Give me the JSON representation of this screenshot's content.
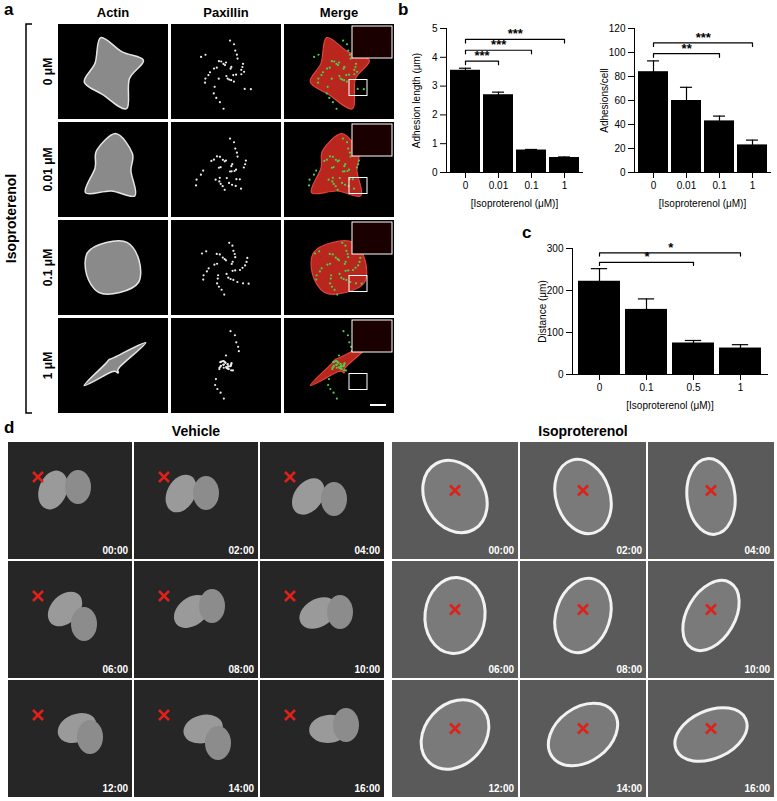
{
  "panel_labels": [
    "a",
    "b",
    "c",
    "d"
  ],
  "panel_a": {
    "group_label": "Isoproterenol",
    "columns": [
      "Actin",
      "Paxillin",
      "Merge"
    ],
    "rows": [
      "0 μM",
      "0.01 μM",
      "0.1 μM",
      "1 μM"
    ]
  },
  "chart_data": [
    {
      "type": "bar",
      "categories": [
        "0",
        "0.01",
        "0.1",
        "1"
      ],
      "values": [
        3.55,
        2.7,
        0.78,
        0.52
      ],
      "errors": [
        0.07,
        0.09,
        0.02,
        0.02
      ],
      "color": "#000000",
      "x_label": "[Isoproterenol (μM)]",
      "y_label": "Adhesion length (μm)",
      "ylim": [
        0,
        5
      ],
      "yticks": [
        0,
        1,
        2,
        3,
        4,
        5
      ],
      "annotations": [
        {
          "from": "0",
          "to": "0.01",
          "label": "***"
        },
        {
          "from": "0",
          "to": "0.1",
          "label": "***"
        },
        {
          "from": "0",
          "to": "1",
          "label": "***"
        }
      ]
    },
    {
      "type": "bar",
      "categories": [
        "0",
        "0.01",
        "0.1",
        "1"
      ],
      "values": [
        84,
        60,
        43,
        23
      ],
      "errors": [
        9,
        11,
        4,
        4
      ],
      "color": "#000000",
      "x_label": "[Isoproterenol (μM)]",
      "y_label": "Adhesions/cell",
      "ylim": [
        0,
        120
      ],
      "yticks": [
        0,
        20,
        40,
        60,
        80,
        100,
        120
      ],
      "annotations": [
        {
          "from": "0",
          "to": "0.1",
          "label": "**"
        },
        {
          "from": "0",
          "to": "1",
          "label": "***"
        }
      ]
    },
    {
      "type": "bar",
      "categories": [
        "0",
        "0.1",
        "0.5",
        "1"
      ],
      "values": [
        222,
        155,
        75,
        63
      ],
      "errors": [
        30,
        25,
        6,
        8
      ],
      "color": "#000000",
      "x_label": "[Isoproterenol (μM)]",
      "y_label": "Distance (μm)",
      "ylim": [
        0,
        300
      ],
      "yticks": [
        0,
        100,
        200,
        300
      ],
      "annotations": [
        {
          "from": "0",
          "to": "0.5",
          "label": "*"
        },
        {
          "from": "0",
          "to": "1",
          "label": "*"
        }
      ]
    }
  ],
  "panel_d": {
    "columns": [
      "Vehicle",
      "Isoproterenol"
    ],
    "timestamps": [
      "00:00",
      "02:00",
      "04:00",
      "06:00",
      "08:00",
      "10:00",
      "12:00",
      "14:00",
      "16:00"
    ]
  }
}
